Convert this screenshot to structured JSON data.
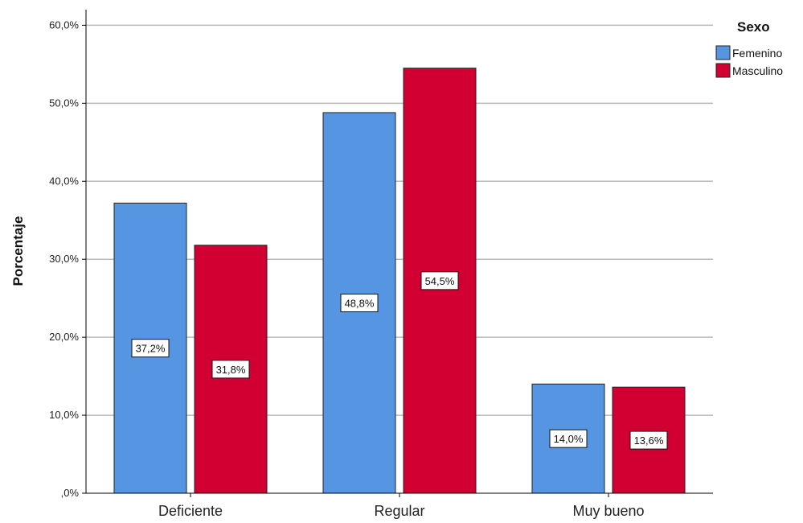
{
  "chart_data": {
    "type": "bar",
    "title": "",
    "xlabel": "",
    "ylabel": "Porcentaje",
    "ylim": [
      0,
      62
    ],
    "yticks": [
      0,
      10,
      20,
      30,
      40,
      50,
      60
    ],
    "ytick_labels": [
      ",0%",
      "10,0%",
      "20,0%",
      "30,0%",
      "40,0%",
      "50,0%",
      "60,0%"
    ],
    "categories": [
      "Deficiente",
      "Regular",
      "Muy bueno"
    ],
    "grid": true,
    "legend_title": "Sexo",
    "legend_position": "top-right",
    "series": [
      {
        "name": "Femenino",
        "color": "#5595e2",
        "values": [
          37.2,
          48.8,
          14.0
        ],
        "labels": [
          "37,2%",
          "48,8%",
          "14,0%"
        ]
      },
      {
        "name": "Masculino",
        "color": "#d20032",
        "values": [
          31.8,
          54.5,
          13.6
        ],
        "labels": [
          "31,8%",
          "54,5%",
          "13,6%"
        ]
      }
    ]
  }
}
